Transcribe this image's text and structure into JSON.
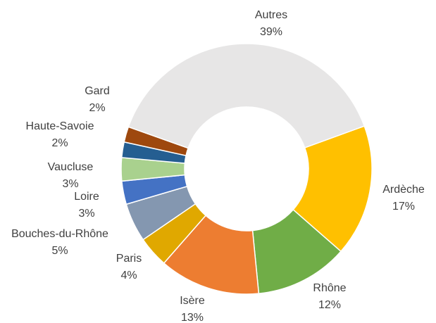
{
  "chart_data": {
    "type": "pie",
    "donut": true,
    "categories": [
      "Ardèche",
      "Rhône",
      "Isère",
      "Paris",
      "Bouches-du-Rhône",
      "Loire",
      "Vaucluse",
      "Haute-Savoie",
      "Gard",
      "Autres"
    ],
    "values": [
      17,
      12,
      13,
      4,
      5,
      3,
      3,
      2,
      2,
      39
    ],
    "value_labels": [
      "17%",
      "12%",
      "13%",
      "4%",
      "5%",
      "3%",
      "3%",
      "2%",
      "2%",
      "39%"
    ],
    "colors": [
      "#FFC000",
      "#70AD47",
      "#ED7D31",
      "#E0A800",
      "#8497B0",
      "#4472C4",
      "#A9D18E",
      "#255E91",
      "#9E480E",
      "#E7E6E6"
    ]
  }
}
